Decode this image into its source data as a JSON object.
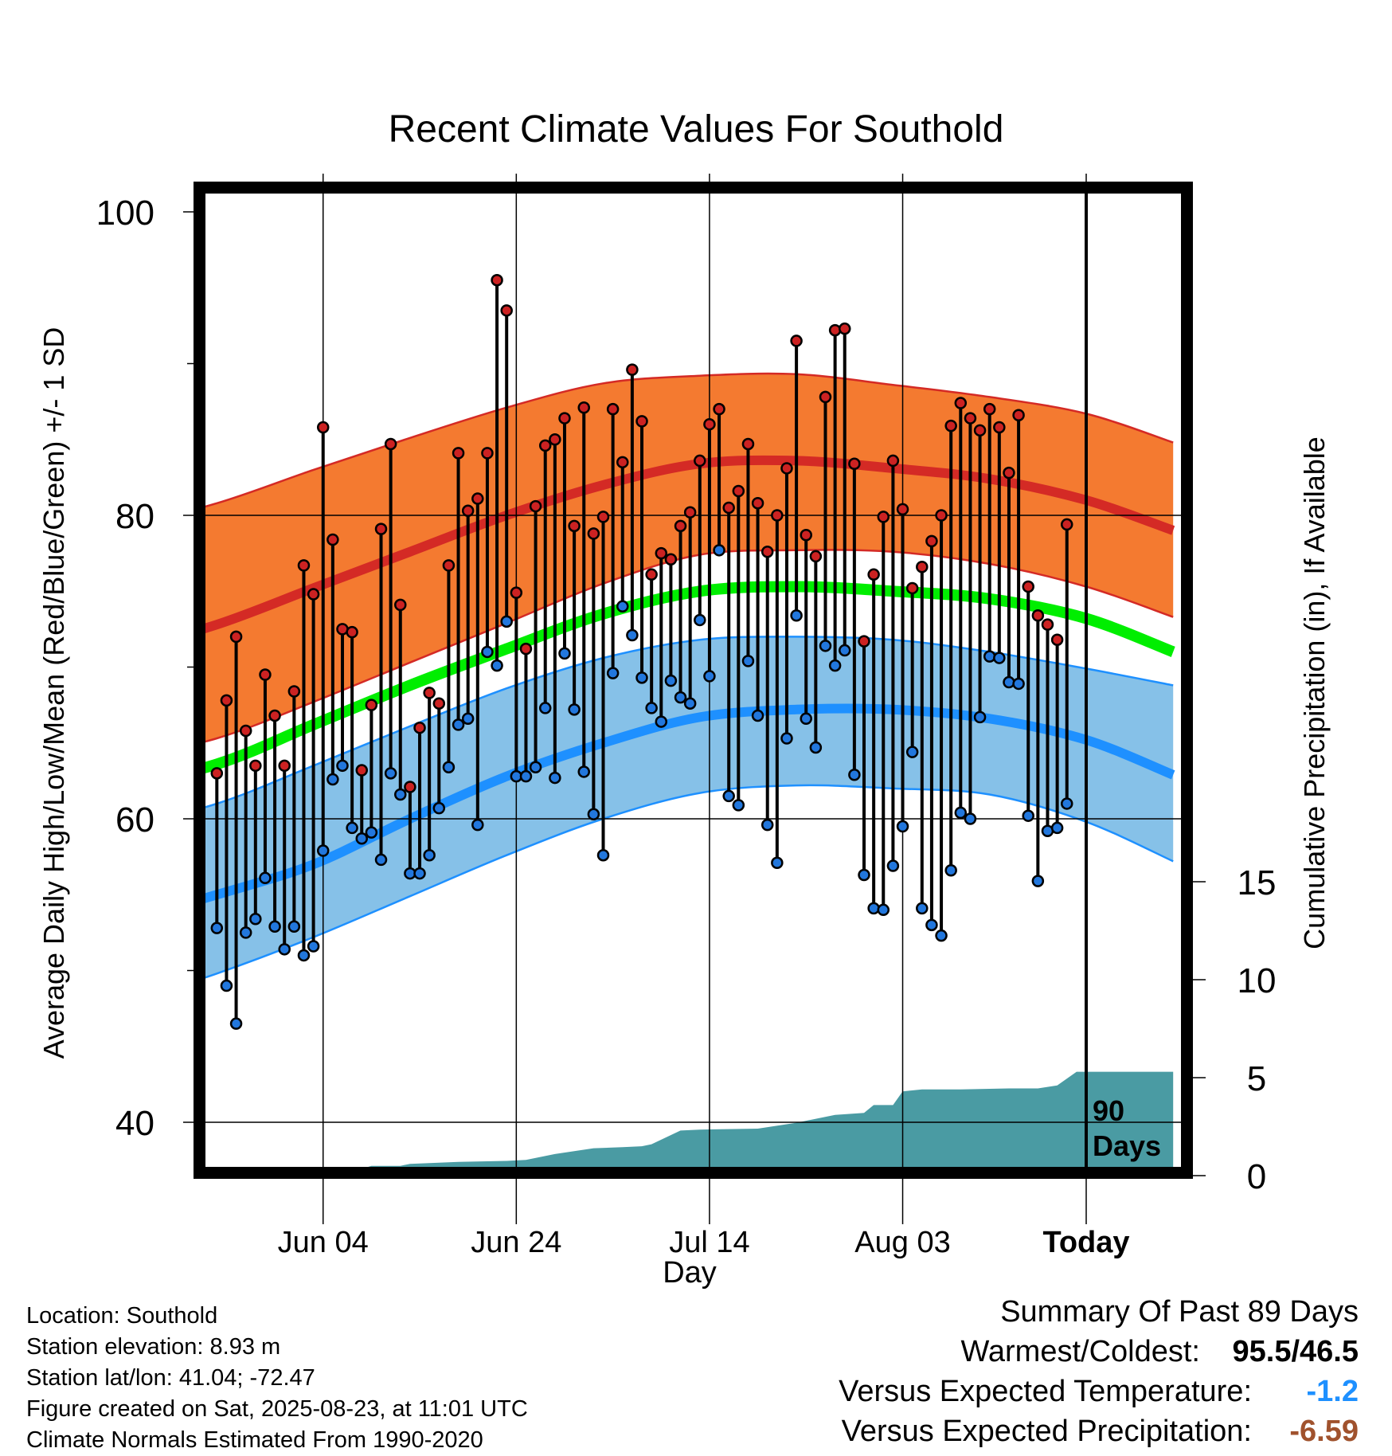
{
  "chart_data": {
    "type": "line",
    "title": "Recent Climate Values For Southold",
    "xlabel": "Day",
    "ylabel": "Average Daily High/Low/Mean (Red/Blue/Green) +/- 1 SD",
    "y2label": "Cumulative Precipitation (in), If Available",
    "ylim": [
      37,
      99
    ],
    "y2lim": [
      0,
      20
    ],
    "yticks": [
      40,
      60,
      80,
      100
    ],
    "y2ticks": [
      0,
      5,
      10,
      15
    ],
    "x_range_days": [
      -101,
      9
    ],
    "xticks": [
      {
        "day": -79,
        "label": "Jun 04"
      },
      {
        "day": -59,
        "label": "Jun 24"
      },
      {
        "day": -39,
        "label": "Jul 14"
      },
      {
        "day": -19,
        "label": "Aug 03"
      },
      {
        "day": 0,
        "label": "Today"
      }
    ],
    "window_label": "90\nDays",
    "colors": {
      "high_band": "#f47a30",
      "high_line": "#d42a25",
      "low_band": "#86c1e8",
      "low_line": "#1e90ff",
      "mean_line": "#00ee00",
      "precip": "#4a9ba3",
      "high_dot": "#cc2222",
      "low_dot": "#2277dd"
    },
    "normals": {
      "day": [
        -101,
        -90,
        -80,
        -70,
        -60,
        -50,
        -40,
        -30,
        -20,
        -10,
        0,
        9
      ],
      "high_mean": [
        70.8,
        72.8,
        75.2,
        77.6,
        80.0,
        82.0,
        83.4,
        83.6,
        83.1,
        82.4,
        81.0,
        79.0
      ],
      "high_upper": [
        79.0,
        80.8,
        83.0,
        85.1,
        87.1,
        88.7,
        89.2,
        89.3,
        88.6,
        87.8,
        86.7,
        84.8
      ],
      "high_lower": [
        63.7,
        65.3,
        67.7,
        70.3,
        72.9,
        75.5,
        77.4,
        77.7,
        77.6,
        76.8,
        75.3,
        73.3
      ],
      "mean_mean": [
        62.0,
        63.6,
        66.2,
        68.8,
        71.2,
        73.5,
        75.0,
        75.3,
        75.0,
        74.5,
        73.2,
        71.0
      ],
      "low_mean": [
        53.0,
        55.0,
        57.0,
        60.0,
        62.8,
        65.0,
        66.7,
        67.2,
        67.2,
        66.6,
        65.2,
        62.9
      ],
      "low_upper": [
        59.2,
        61.0,
        63.5,
        66.1,
        68.6,
        70.6,
        71.8,
        72.0,
        71.8,
        71.0,
        69.9,
        68.8
      ],
      "low_lower": [
        47.5,
        49.8,
        52.2,
        54.9,
        57.6,
        60.0,
        61.7,
        62.2,
        62.0,
        61.6,
        59.8,
        57.2
      ]
    },
    "daily": {
      "start_day": -90,
      "high": [
        63.0,
        67.8,
        72.0,
        65.8,
        63.5,
        69.5,
        66.8,
        63.5,
        68.4,
        76.7,
        74.8,
        85.8,
        78.4,
        72.5,
        72.3,
        63.2,
        67.5,
        79.1,
        84.7,
        74.1,
        62.1,
        66.0,
        68.3,
        67.6,
        76.7,
        84.1,
        80.3,
        81.1,
        84.1,
        95.5,
        93.5,
        74.9,
        71.2,
        80.6,
        84.6,
        85.0,
        86.4,
        79.3,
        87.1,
        78.8,
        79.9,
        87.0,
        83.5,
        89.6,
        86.2,
        76.1,
        77.5,
        77.1,
        79.3,
        80.2,
        83.6,
        86.0,
        87.0,
        80.5,
        81.6,
        84.7,
        80.8,
        77.6,
        80.0,
        83.1,
        91.5,
        78.7,
        77.3,
        87.8,
        92.2,
        92.3,
        83.4,
        71.7,
        76.1,
        79.9,
        83.6,
        80.4,
        75.2,
        76.6,
        78.3,
        80.0,
        85.9,
        87.4,
        86.4,
        85.6,
        87.0,
        85.8,
        82.8,
        86.6,
        75.3,
        73.4,
        72.8,
        71.8,
        79.4
      ],
      "low": [
        52.8,
        49.0,
        46.5,
        52.5,
        53.4,
        56.1,
        52.9,
        51.4,
        52.9,
        51.0,
        51.6,
        57.9,
        62.6,
        63.5,
        59.4,
        58.7,
        59.1,
        57.3,
        63.0,
        61.6,
        56.4,
        56.4,
        57.6,
        60.7,
        63.4,
        66.2,
        66.6,
        59.6,
        71.0,
        70.1,
        73.0,
        62.8,
        62.8,
        63.4,
        67.3,
        62.7,
        70.9,
        67.2,
        63.1,
        60.3,
        57.6,
        69.6,
        74.0,
        72.1,
        69.3,
        67.3,
        66.4,
        69.1,
        68.0,
        67.6,
        73.1,
        69.4,
        77.7,
        61.5,
        60.9,
        70.4,
        66.8,
        59.6,
        57.1,
        65.3,
        73.4,
        66.6,
        64.7,
        71.4,
        70.1,
        71.1,
        62.9,
        56.3,
        54.1,
        54.0,
        56.9,
        59.5,
        64.4,
        54.1,
        53.0,
        52.3,
        56.6,
        60.4,
        60.0,
        66.7,
        70.7,
        70.6,
        69.0,
        68.9,
        60.2,
        55.9,
        59.2,
        59.4,
        61.0
      ]
    },
    "precip_cumulative": {
      "day": [
        -101,
        -89,
        -85,
        -84,
        -80,
        -75,
        -74,
        -71,
        -70,
        -65,
        -63,
        -60,
        -58,
        -55,
        -51,
        -48,
        -46,
        -45,
        -42,
        -40,
        -34,
        -30,
        -26,
        -23,
        -22,
        -20,
        -19,
        -17,
        -13,
        -8,
        -5,
        -3,
        -1,
        9
      ],
      "value": [
        0.0,
        0.0,
        0.3,
        0.3,
        0.3,
        0.35,
        0.5,
        0.5,
        0.6,
        0.7,
        0.72,
        0.75,
        0.8,
        1.1,
        1.4,
        1.45,
        1.5,
        1.6,
        2.3,
        2.35,
        2.4,
        2.7,
        3.1,
        3.2,
        3.6,
        3.6,
        4.3,
        4.4,
        4.4,
        4.45,
        4.45,
        4.6,
        5.3,
        5.3
      ]
    }
  },
  "info": {
    "location": "Location: Southold",
    "elevation": "Station elevation: 8.93 m",
    "latlon": "Station lat/lon: 41.04; -72.47",
    "created": "Figure created on Sat, 2025-08-23, at 11:01 UTC",
    "normals": "Climate Normals Estimated From 1990-2020"
  },
  "summary": {
    "title": "Summary Of Past 89 Days",
    "warmest_label": "Warmest/Coldest:",
    "warmest_value": "95.5",
    "coldest_value": "46.5",
    "separator": "/",
    "temp_label": "Versus Expected Temperature:",
    "temp_value": "-1.2",
    "temp_color": "#1e90ff",
    "precip_label": "Versus Expected Precipitation:",
    "precip_value": "-6.59",
    "precip_color": "#a0522d"
  }
}
